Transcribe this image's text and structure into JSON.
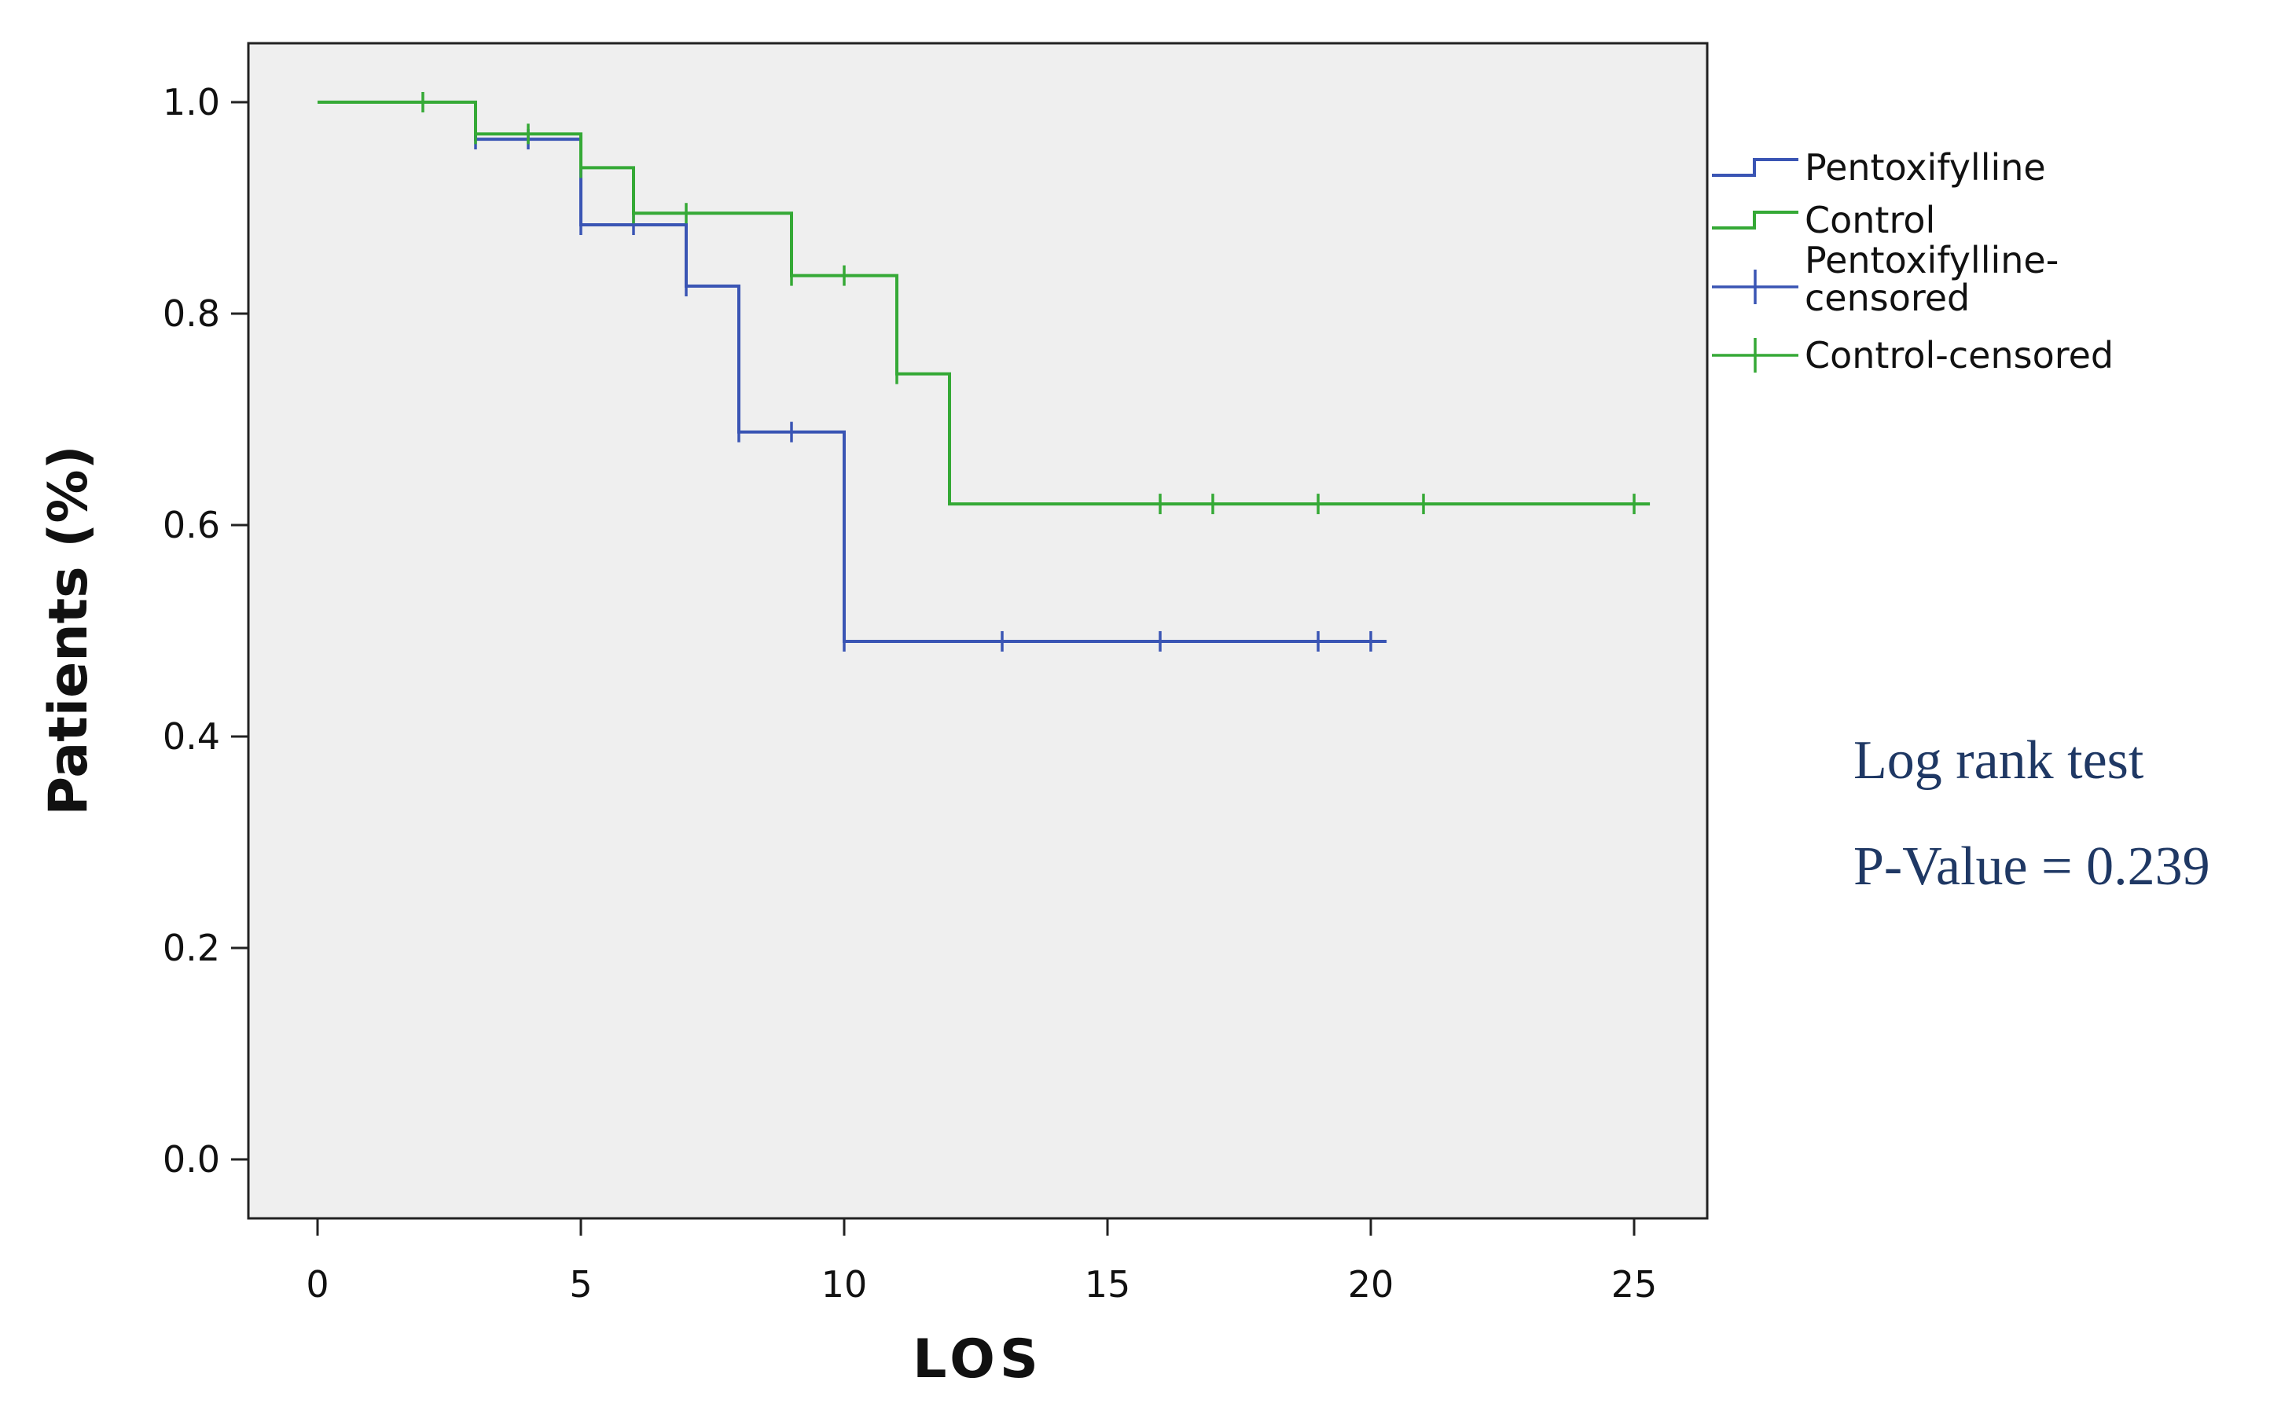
{
  "chart_data": {
    "type": "line",
    "subtype": "kaplan-meier-step",
    "title": "",
    "xlabel": "LOS",
    "ylabel": "Patients (%)",
    "xlim": [
      0,
      25
    ],
    "ylim": [
      0,
      1.0
    ],
    "x_ticks": [
      0,
      5,
      10,
      15,
      20,
      25
    ],
    "y_ticks": [
      0.0,
      0.2,
      0.4,
      0.6,
      0.8,
      1.0
    ],
    "x_tick_labels": [
      "0",
      "5",
      "10",
      "15",
      "20",
      "25"
    ],
    "y_tick_labels": [
      "0.0",
      "0.2",
      "0.4",
      "0.6",
      "0.8",
      "1.0"
    ],
    "grid": false,
    "plot_background": "#efefef",
    "legend_position": "right",
    "series": [
      {
        "name": "Pentoxifylline",
        "color": "#3a55b4",
        "steps": [
          [
            0,
            1.0
          ],
          [
            3,
            0.965
          ],
          [
            5,
            0.884
          ],
          [
            7,
            0.826
          ],
          [
            8,
            0.688
          ],
          [
            10,
            0.49
          ]
        ],
        "end_x": 20.3,
        "censored": [
          [
            3,
            0.965
          ],
          [
            4,
            0.965
          ],
          [
            5,
            0.884
          ],
          [
            6,
            0.884
          ],
          [
            7,
            0.826
          ],
          [
            8,
            0.688
          ],
          [
            9,
            0.688
          ],
          [
            10,
            0.49
          ],
          [
            13,
            0.49
          ],
          [
            16,
            0.49
          ],
          [
            19,
            0.49
          ],
          [
            20,
            0.49
          ]
        ]
      },
      {
        "name": "Control",
        "color": "#35a936",
        "steps": [
          [
            0,
            1.0
          ],
          [
            3,
            0.97
          ],
          [
            5,
            0.938
          ],
          [
            6,
            0.895
          ],
          [
            9,
            0.836
          ],
          [
            11,
            0.743
          ],
          [
            12,
            0.62
          ]
        ],
        "end_x": 25.3,
        "censored": [
          [
            2,
            1.0
          ],
          [
            3,
            0.97
          ],
          [
            4,
            0.97
          ],
          [
            5,
            0.938
          ],
          [
            6,
            0.895
          ],
          [
            7,
            0.895
          ],
          [
            9,
            0.836
          ],
          [
            10,
            0.836
          ],
          [
            11,
            0.743
          ],
          [
            16,
            0.62
          ],
          [
            17,
            0.62
          ],
          [
            19,
            0.62
          ],
          [
            21,
            0.62
          ],
          [
            25,
            0.62
          ]
        ]
      }
    ],
    "legend": [
      {
        "label": "Pentoxifylline",
        "kind": "step",
        "series": 0
      },
      {
        "label": "Control",
        "kind": "step",
        "series": 1
      },
      {
        "label": [
          "Pentoxifylline-",
          "censored"
        ],
        "kind": "censor",
        "series": 0
      },
      {
        "label": "Control-censored",
        "kind": "censor",
        "series": 1
      }
    ],
    "annotations": [
      "Log rank test",
      "P-Value = 0.239"
    ]
  }
}
